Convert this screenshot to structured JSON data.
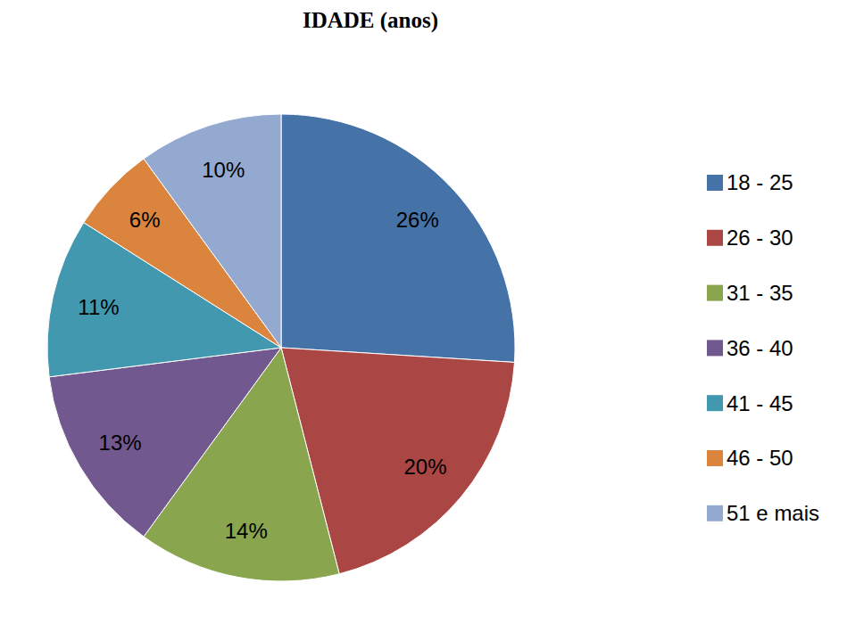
{
  "chart_data": {
    "type": "pie",
    "title": "IDADE (anos)",
    "categories": [
      "18 - 25",
      "26 - 30",
      "31 - 35",
      "36 - 40",
      "41 - 45",
      "46 - 50",
      "51 e mais"
    ],
    "values": [
      26,
      20,
      14,
      13,
      11,
      6,
      10
    ],
    "value_labels": [
      "26%",
      "20%",
      "14%",
      "13%",
      "11%",
      "6%",
      "10%"
    ],
    "colors": [
      "#4572a7",
      "#aa4643",
      "#89a54e",
      "#71588f",
      "#4198af",
      "#db843d",
      "#93a9cf"
    ],
    "data_labels": true,
    "legend": "right"
  }
}
